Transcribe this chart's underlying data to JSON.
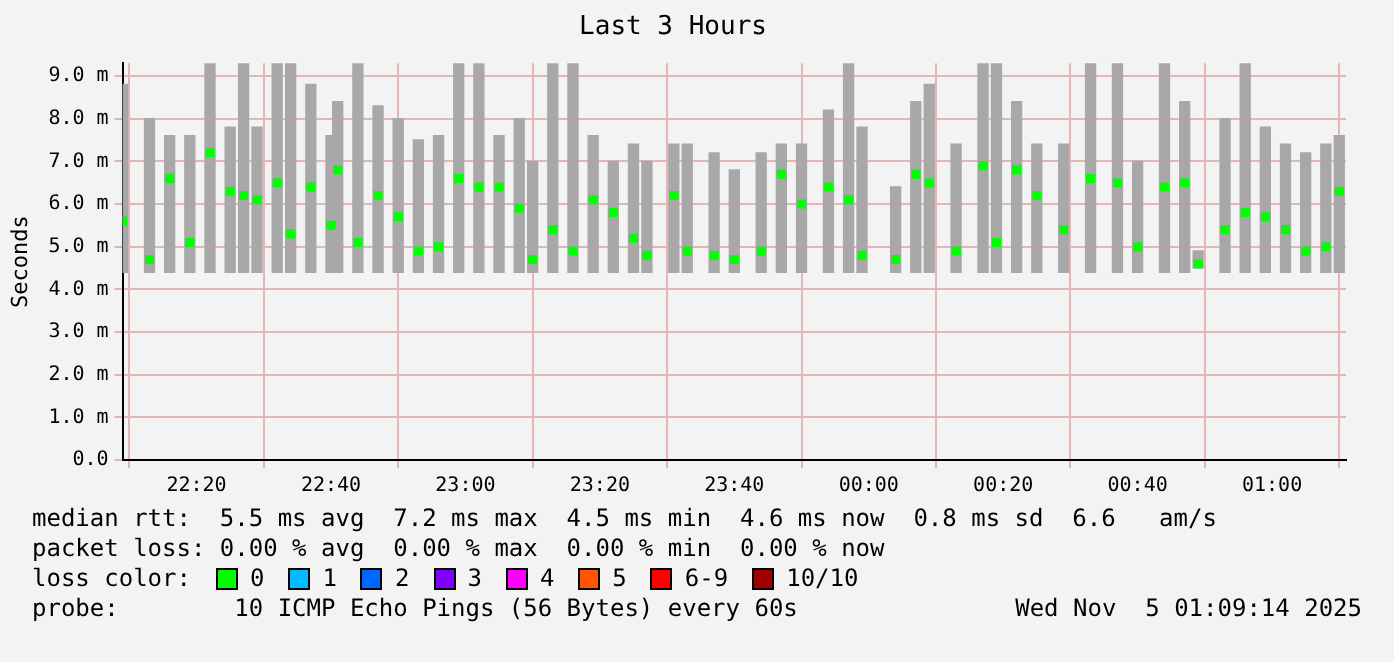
{
  "chart_data": {
    "type": "bar",
    "title": "Last 3 Hours",
    "ylabel": "Seconds",
    "xlim": [
      "2025-11-04T22:09",
      "2025-11-05T01:11"
    ],
    "xticks": [
      {
        "value": "2025-11-04T22:20",
        "label": "22:20"
      },
      {
        "value": "2025-11-04T22:40",
        "label": "22:40"
      },
      {
        "value": "2025-11-04T23:00",
        "label": "23:00"
      },
      {
        "value": "2025-11-04T23:20",
        "label": "23:20"
      },
      {
        "value": "2025-11-04T23:40",
        "label": "23:40"
      },
      {
        "value": "2025-11-05T00:00",
        "label": "00:00"
      },
      {
        "value": "2025-11-05T00:20",
        "label": "00:20"
      },
      {
        "value": "2025-11-05T00:40",
        "label": "00:40"
      },
      {
        "value": "2025-11-05T01:00",
        "label": "01:00"
      }
    ],
    "ylim": [
      0,
      9.3
    ],
    "yticks": [
      {
        "value": 0,
        "label": "0.0"
      },
      {
        "value": 1,
        "label": "1.0 m"
      },
      {
        "value": 2,
        "label": "2.0 m"
      },
      {
        "value": 3,
        "label": "3.0 m"
      },
      {
        "value": 4,
        "label": "4.0 m"
      },
      {
        "value": 5,
        "label": "5.0 m"
      },
      {
        "value": 6,
        "label": "6.0 m"
      },
      {
        "value": 7,
        "label": "7.0 m"
      },
      {
        "value": 8,
        "label": "8.0 m"
      },
      {
        "value": 9,
        "label": "9.0 m"
      }
    ],
    "grid": true,
    "legend": false,
    "x": [
      "2025-11-04T22:09",
      "2025-11-04T22:13",
      "2025-11-04T22:16",
      "2025-11-04T22:19",
      "2025-11-04T22:22",
      "2025-11-04T22:25",
      "2025-11-04T22:27",
      "2025-11-04T22:29",
      "2025-11-04T22:32",
      "2025-11-04T22:34",
      "2025-11-04T22:37",
      "2025-11-04T22:40",
      "2025-11-04T22:41",
      "2025-11-04T22:44",
      "2025-11-04T22:47",
      "2025-11-04T22:50",
      "2025-11-04T22:53",
      "2025-11-04T22:56",
      "2025-11-04T22:59",
      "2025-11-04T23:02",
      "2025-11-04T23:05",
      "2025-11-04T23:08",
      "2025-11-04T23:10",
      "2025-11-04T23:13",
      "2025-11-04T23:16",
      "2025-11-04T23:19",
      "2025-11-04T23:22",
      "2025-11-04T23:25",
      "2025-11-04T23:27",
      "2025-11-04T23:31",
      "2025-11-04T23:33",
      "2025-11-04T23:37",
      "2025-11-04T23:40",
      "2025-11-04T23:44",
      "2025-11-04T23:47",
      "2025-11-04T23:50",
      "2025-11-04T23:54",
      "2025-11-04T23:57",
      "2025-11-04T23:59",
      "2025-11-05T00:04",
      "2025-11-05T00:07",
      "2025-11-05T00:09",
      "2025-11-05T00:13",
      "2025-11-05T00:17",
      "2025-11-05T00:19",
      "2025-11-05T00:22",
      "2025-11-05T00:25",
      "2025-11-05T00:29",
      "2025-11-05T00:33",
      "2025-11-05T00:37",
      "2025-11-05T00:40",
      "2025-11-05T00:44",
      "2025-11-05T00:47",
      "2025-11-05T00:49",
      "2025-11-05T00:53",
      "2025-11-05T00:56",
      "2025-11-05T00:59",
      "2025-11-05T01:02",
      "2025-11-05T01:05",
      "2025-11-05T01:08",
      "2025-11-05T01:10"
    ],
    "series": [
      {
        "color": "#a8a8a8",
        "base": [
          4.4,
          4.4,
          4.4,
          4.4,
          4.4,
          4.4,
          4.4,
          4.4,
          4.4,
          4.4,
          4.4,
          4.4,
          4.4,
          4.4,
          4.4,
          4.4,
          4.4,
          4.4,
          4.4,
          4.4,
          4.4,
          4.4,
          4.4,
          4.4,
          4.4,
          4.4,
          4.4,
          4.4,
          4.4,
          4.4,
          4.4,
          4.4,
          4.4,
          4.4,
          4.4,
          4.4,
          4.4,
          4.4,
          4.4,
          4.4,
          4.4,
          4.4,
          4.4,
          4.4,
          4.4,
          4.4,
          4.4,
          4.4,
          4.4,
          4.4,
          4.4,
          4.4,
          4.4,
          4.5,
          4.4,
          4.4,
          4.4,
          4.4,
          4.4,
          4.4,
          4.4
        ],
        "values": [
          4.4,
          3.6,
          3.2,
          3.2,
          4.9,
          3.4,
          4.9,
          3.4,
          4.9,
          4.9,
          4.4,
          3.2,
          4.0,
          4.9,
          3.9,
          3.6,
          3.1,
          3.2,
          4.9,
          4.9,
          3.2,
          3.6,
          2.6,
          4.9,
          4.9,
          3.2,
          2.6,
          3.0,
          2.6,
          3.0,
          3.0,
          2.8,
          2.4,
          2.8,
          3.0,
          3.0,
          3.8,
          4.9,
          3.4,
          2.0,
          4.0,
          4.4,
          3.0,
          4.9,
          4.9,
          4.0,
          3.0,
          3.0,
          4.9,
          4.9,
          2.6,
          4.9,
          4.0,
          0.4,
          3.6,
          4.9,
          3.4,
          3.0,
          2.8,
          3.0,
          3.2
        ]
      },
      {
        "type": "scatter",
        "color": "#00ff00",
        "marker": "square",
        "values": [
          5.6,
          4.7,
          6.6,
          5.1,
          7.2,
          6.3,
          6.2,
          6.1,
          6.5,
          5.3,
          6.4,
          5.5,
          6.8,
          5.1,
          6.2,
          5.7,
          4.9,
          5.0,
          6.6,
          6.4,
          6.4,
          5.9,
          4.7,
          5.4,
          4.9,
          6.1,
          5.8,
          5.2,
          4.8,
          6.2,
          4.9,
          4.8,
          4.7,
          4.9,
          6.7,
          6.0,
          6.4,
          6.1,
          4.8,
          4.7,
          6.7,
          6.5,
          4.9,
          6.9,
          5.1,
          6.8,
          6.2,
          5.4,
          6.6,
          6.5,
          5.0,
          6.4,
          6.5,
          4.6,
          5.4,
          5.8,
          5.7,
          5.4,
          4.9,
          5.0,
          6.3
        ]
      }
    ],
    "annotations": [
      "median rtt:  5.5 ms avg  7.2 ms max  4.5 ms min  4.6 ms now  0.8 ms sd  6.6   am/s",
      "packet loss: 0.00 % avg  0.00 % max  0.00 % min  0.00 % now",
      "loss color:",
      "0",
      "1",
      "2",
      "3",
      "4",
      "5",
      "6-9",
      "10/10",
      "probe:        10 ICMP Echo Pings (56 Bytes) every 60s",
      "Wed Nov  5 01:09:14 2025"
    ]
  }
}
